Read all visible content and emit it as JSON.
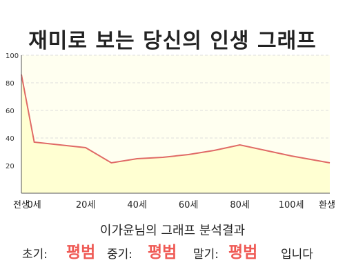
{
  "header": {
    "title": "재미로 보는 당신의 인생 그래프"
  },
  "chart_data": {
    "type": "area",
    "x": [
      -5,
      0,
      20,
      30,
      40,
      50,
      60,
      70,
      80,
      90,
      100,
      115
    ],
    "values": [
      86,
      37,
      33,
      22,
      25,
      26,
      28,
      31,
      35,
      31,
      27,
      22
    ],
    "ylim": [
      0,
      100
    ],
    "yticks": [
      "100",
      "80",
      "60",
      "40",
      "20"
    ],
    "xticks": [
      {
        "x": -5,
        "label": "전생"
      },
      {
        "x": 0,
        "label": "0세"
      },
      {
        "x": 20,
        "label": "20세"
      },
      {
        "x": 40,
        "label": "40세"
      },
      {
        "x": 60,
        "label": "60세"
      },
      {
        "x": 80,
        "label": "80세"
      },
      {
        "x": 100,
        "label": "100세"
      },
      {
        "x": 115,
        "label": "환생"
      }
    ],
    "grid": true,
    "colors": {
      "line": "#e06a66",
      "fill": "#ffffd2",
      "plot_bg": "#fffff0",
      "grid": "#dddddd"
    }
  },
  "result": {
    "heading": "이가윤님의 그래프 분석결과",
    "early_label": "초기:",
    "early_value": "평범",
    "middle_label": "중기:",
    "middle_value": "평범",
    "late_label": "말기:",
    "late_value": "평범",
    "suffix": "입니다"
  }
}
